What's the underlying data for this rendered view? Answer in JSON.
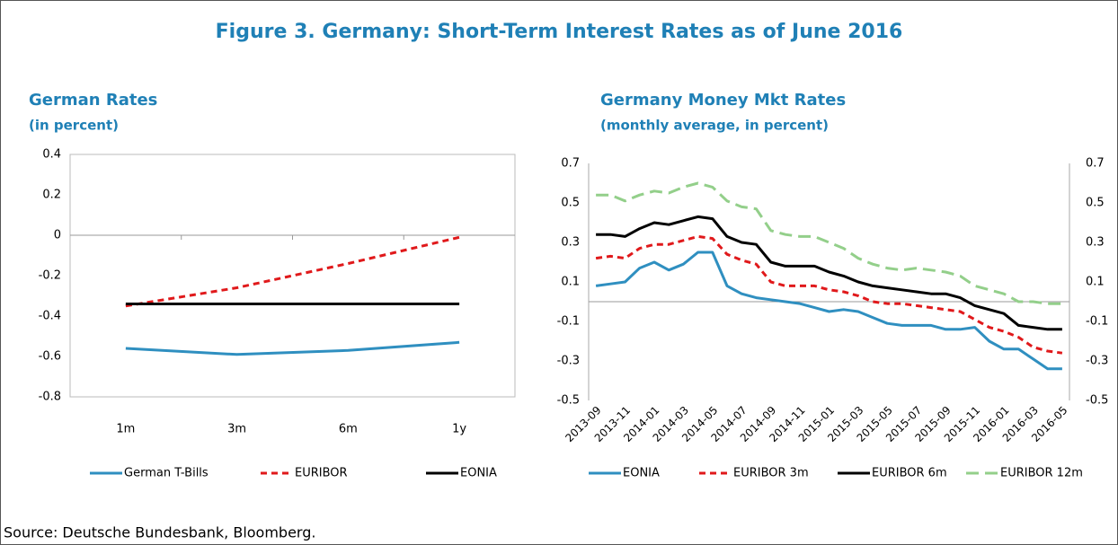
{
  "title": "Figure 3. Germany: Short-Term Interest Rates as of June 2016",
  "source": "Source: Deutsche Bundesbank, Bloomberg.",
  "chart_data": [
    {
      "type": "line",
      "title": "German Rates",
      "subtitle": "(in percent)",
      "categories": [
        "1m",
        "3m",
        "6m",
        "1y"
      ],
      "series": [
        {
          "name": "German T-Bills",
          "color": "#2f8fc0",
          "style": "solid",
          "values": [
            -0.56,
            -0.59,
            -0.57,
            -0.53
          ]
        },
        {
          "name": "EURIBOR",
          "color": "#e0191b",
          "style": "dashed",
          "values": [
            -0.35,
            -0.26,
            -0.14,
            -0.01
          ]
        },
        {
          "name": "EONIA",
          "color": "#000000",
          "style": "solid",
          "values": [
            -0.34,
            -0.34,
            -0.34,
            -0.34
          ]
        }
      ],
      "ylim": [
        -0.8,
        0.4
      ],
      "yticks": [
        -0.8,
        -0.6,
        -0.4,
        -0.2,
        0,
        0.2,
        0.4
      ],
      "grid": false
    },
    {
      "type": "line",
      "title": "Germany Money Mkt Rates",
      "subtitle": "(monthly average, in percent)",
      "categories": [
        "2013-09",
        null,
        "2013-11",
        null,
        "2014-01",
        null,
        "2014-03",
        null,
        "2014-05",
        null,
        "2014-07",
        null,
        "2014-09",
        null,
        "2014-11",
        null,
        "2015-01",
        null,
        "2015-03",
        null,
        "2015-05",
        null,
        "2015-07",
        null,
        "2015-09",
        null,
        "2015-11",
        null,
        "2016-01",
        null,
        "2016-03",
        null,
        "2016-05"
      ],
      "series": [
        {
          "name": "EONIA",
          "color": "#2f8fc0",
          "style": "solid",
          "values": [
            0.08,
            0.09,
            0.1,
            0.17,
            0.2,
            0.16,
            0.19,
            0.25,
            0.25,
            0.08,
            0.04,
            0.02,
            0.01,
            0.0,
            -0.01,
            -0.03,
            -0.05,
            -0.04,
            -0.05,
            -0.08,
            -0.11,
            -0.12,
            -0.12,
            -0.12,
            -0.14,
            -0.14,
            -0.13,
            -0.2,
            -0.24,
            -0.24,
            -0.29,
            -0.34,
            -0.34
          ]
        },
        {
          "name": "EURIBOR 3m",
          "color": "#e0191b",
          "style": "dashed",
          "values": [
            0.22,
            0.23,
            0.22,
            0.27,
            0.29,
            0.29,
            0.31,
            0.33,
            0.32,
            0.24,
            0.21,
            0.19,
            0.1,
            0.08,
            0.08,
            0.08,
            0.06,
            0.05,
            0.03,
            0.0,
            -0.01,
            -0.01,
            -0.02,
            -0.03,
            -0.04,
            -0.05,
            -0.09,
            -0.13,
            -0.15,
            -0.18,
            -0.23,
            -0.25,
            -0.26
          ]
        },
        {
          "name": "EURIBOR 6m",
          "color": "#000000",
          "style": "solid",
          "values": [
            0.34,
            0.34,
            0.33,
            0.37,
            0.4,
            0.39,
            0.41,
            0.43,
            0.42,
            0.33,
            0.3,
            0.29,
            0.2,
            0.18,
            0.18,
            0.18,
            0.15,
            0.13,
            0.1,
            0.08,
            0.07,
            0.06,
            0.05,
            0.04,
            0.04,
            0.02,
            -0.02,
            -0.04,
            -0.06,
            -0.12,
            -0.13,
            -0.14,
            -0.14
          ]
        },
        {
          "name": "EURIBOR 12m",
          "color": "#93cf8a",
          "style": "longdash",
          "values": [
            0.54,
            0.54,
            0.51,
            0.54,
            0.56,
            0.55,
            0.58,
            0.6,
            0.58,
            0.51,
            0.48,
            0.47,
            0.36,
            0.34,
            0.33,
            0.33,
            0.3,
            0.27,
            0.22,
            0.19,
            0.17,
            0.16,
            0.17,
            0.16,
            0.15,
            0.13,
            0.08,
            0.06,
            0.04,
            0.0,
            0.0,
            -0.01,
            -0.01
          ]
        }
      ],
      "ylim": [
        -0.5,
        0.7
      ],
      "yticks": [
        -0.5,
        -0.3,
        -0.1,
        0.1,
        0.3,
        0.5,
        0.7
      ],
      "y2lim": [
        -0.5,
        0.7
      ],
      "y2ticks": [
        -0.5,
        -0.3,
        -0.1,
        0.1,
        0.3,
        0.5,
        0.7
      ],
      "grid": false
    }
  ]
}
